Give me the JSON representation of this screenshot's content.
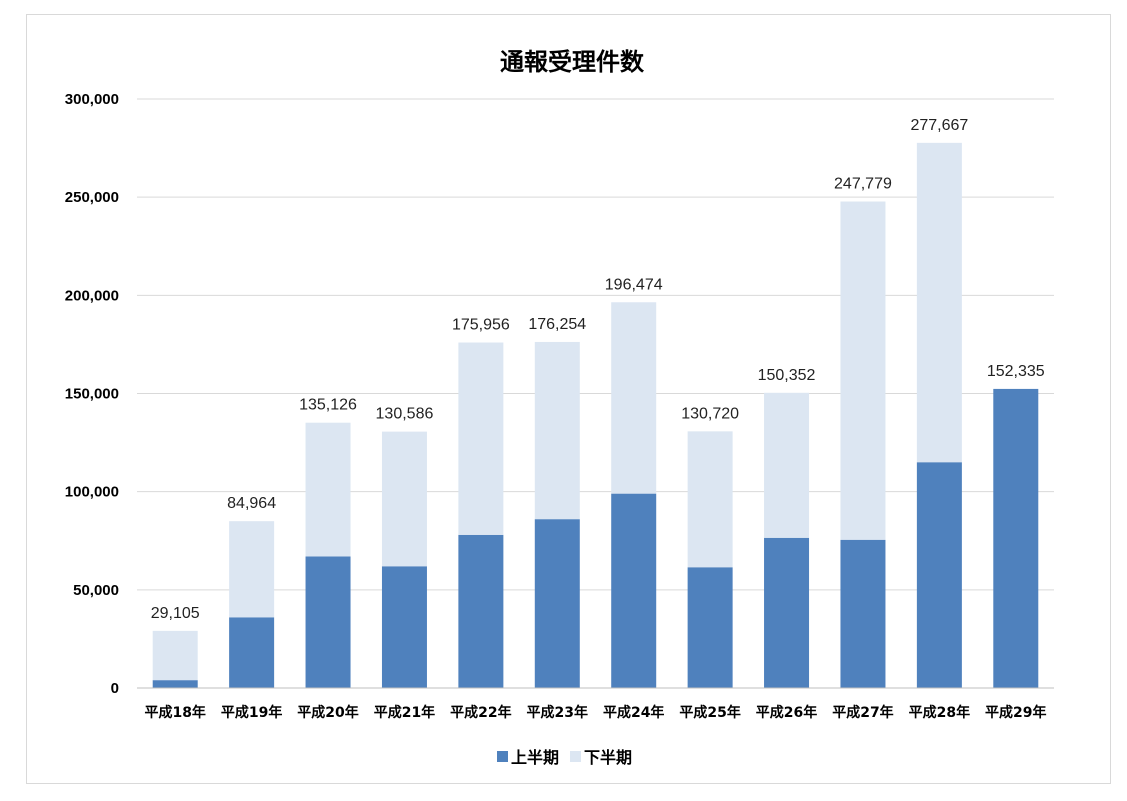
{
  "chart_data": {
    "type": "bar",
    "stacked": true,
    "title": "通報受理件数",
    "xlabel": "",
    "ylabel": "",
    "ylim": [
      0,
      300000
    ],
    "y_ticks": [
      "0",
      "50,000",
      "100,000",
      "150,000",
      "200,000",
      "250,000",
      "300,000"
    ],
    "grid": true,
    "legend_position": "bottom",
    "categories": [
      "平成18年",
      "平成19年",
      "平成20年",
      "平成21年",
      "平成22年",
      "平成23年",
      "平成24年",
      "平成25年",
      "平成26年",
      "平成27年",
      "平成28年",
      "平成29年"
    ],
    "series": [
      {
        "name": "上半期",
        "color": "#4f81bd",
        "values": [
          4000,
          36000,
          67000,
          62000,
          78000,
          86000,
          99000,
          61500,
          76500,
          75500,
          115000,
          152335
        ]
      },
      {
        "name": "下半期",
        "color": "#dce6f2",
        "values": [
          25105,
          48964,
          68126,
          68586,
          97956,
          90254,
          97474,
          69220,
          73852,
          172279,
          162667,
          0
        ]
      }
    ],
    "totals": [
      29105,
      84964,
      135126,
      130586,
      175956,
      176254,
      196474,
      130720,
      150352,
      247779,
      277667,
      152335
    ],
    "total_labels": [
      "29,105",
      "84,964",
      "135,126",
      "130,586",
      "175,956",
      "176,254",
      "196,474",
      "130,720",
      "150,352",
      "247,779",
      "277,667",
      "152,335"
    ]
  }
}
